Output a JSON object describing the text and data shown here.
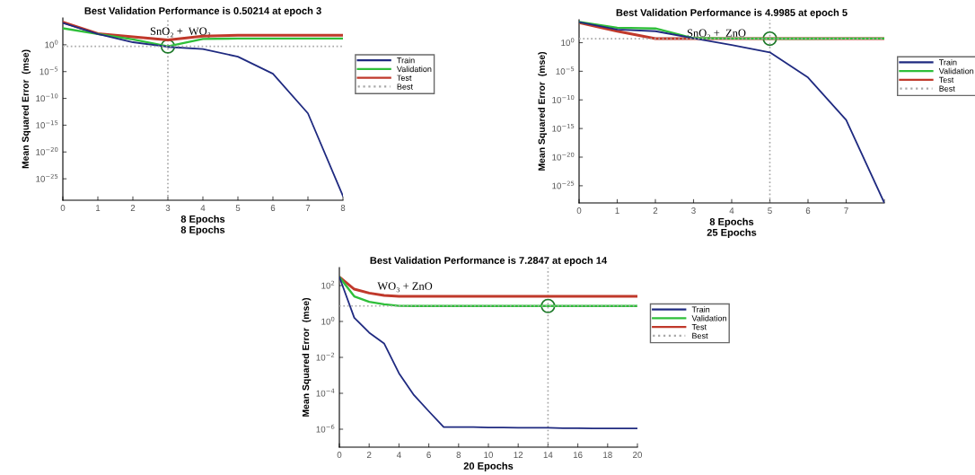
{
  "chart_data": [
    {
      "type": "line",
      "title": "Best Validation Performance is 0.50214 at epoch 3",
      "subtitle": "SnO₂ +  WO₃",
      "xlabel": "8 Epochs\n8 Epochs",
      "ylabel": "Mean Squared Error  (mse)",
      "log": "y",
      "legend": "top right",
      "x": [
        0,
        1,
        2,
        3,
        4,
        5,
        6,
        7,
        8
      ],
      "xlim": [
        0,
        8
      ],
      "xticks": [
        0,
        1,
        2,
        3,
        4,
        5,
        6,
        7,
        8
      ],
      "ylim": [
        1e-29,
        100000.0
      ],
      "yticks": [
        {
          "value": 1,
          "label": "10$^{0}$"
        },
        {
          "value": 1e-05,
          "label": "10$^{−5}$"
        },
        {
          "value": 1e-10,
          "label": "10$^{−10}$"
        },
        {
          "value": 1e-15,
          "label": "10$^{−15}$"
        },
        {
          "value": 1e-20,
          "label": "10$^{−20}$"
        },
        {
          "value": 1e-25,
          "label": "10$^{−25}$"
        }
      ],
      "series": [
        {
          "name": "Train",
          "color": "#1f2a80",
          "values": [
            12000.0,
            100,
            3,
            0.4,
            0.16,
            0.006,
            4e-06,
            1.6e-13,
            6e-29
          ]
        },
        {
          "name": "Validation",
          "color": "#2fbf3a",
          "values": [
            1200.0,
            100,
            10,
            0.50214,
            12,
            15,
            15,
            15,
            15
          ]
        },
        {
          "name": "Test",
          "color": "#c0392b",
          "values": [
            16000.0,
            120,
            30,
            8,
            40,
            60,
            60,
            60,
            60
          ]
        },
        {
          "type": "scatter",
          "marker": "circle",
          "color": "#1e7a2a",
          "x": [
            3
          ],
          "values": [
            0.50214
          ]
        }
      ],
      "ref_lines": [
        {
          "axis": "y",
          "value": 0.50214,
          "label": "Best",
          "color": "#a8a8a8",
          "line_style": "dotted"
        },
        {
          "axis": "x",
          "value": 3,
          "color": "#a8a8a8",
          "line_style": "dotted"
        }
      ]
    },
    {
      "type": "line",
      "title": "Best Validation Performance is 4.9985 at epoch 5",
      "subtitle": "SnO₂ +  ZnO",
      "xlabel": "8 Epochs\n25 Epochs",
      "ylabel": "Mean Squared Error  (mse)",
      "log": "y",
      "legend": "top right",
      "x": [
        0,
        1,
        2,
        3,
        4,
        5,
        6,
        7,
        8
      ],
      "xlim": [
        0,
        8
      ],
      "xticks": [
        0,
        1,
        2,
        3,
        4,
        5,
        6,
        7,
        {
          "value": 8,
          "label": null
        }
      ],
      "ylim": [
        1e-28,
        10000.0
      ],
      "yticks": [
        {
          "value": 1,
          "label": "10$^{0}$"
        },
        {
          "value": 1e-05,
          "label": "10$^{−5}$"
        },
        {
          "value": 1e-10,
          "label": "10$^{−10}$"
        },
        {
          "value": 1e-15,
          "label": "10$^{−15}$"
        },
        {
          "value": 1e-20,
          "label": "10$^{−20}$"
        },
        {
          "value": 1e-25,
          "label": "10$^{−25}$"
        }
      ],
      "series": [
        {
          "name": "Train",
          "color": "#1f2a80",
          "values": [
            4000.0,
            200,
            100,
            6,
            0.4,
            0.02,
            8e-07,
            3e-14,
            1e-28
          ]
        },
        {
          "name": "Validation",
          "color": "#2fbf3a",
          "values": [
            4000.0,
            400,
            300,
            6,
            5.2,
            4.9985,
            5.1,
            5.2,
            5.3
          ]
        },
        {
          "name": "Test",
          "color": "#c0392b",
          "values": [
            3000.0,
            100,
            5,
            5,
            5,
            5,
            5,
            5,
            5
          ]
        },
        {
          "type": "scatter",
          "marker": "circle",
          "color": "#1e7a2a",
          "x": [
            5
          ],
          "values": [
            4.9985
          ]
        }
      ],
      "ref_lines": [
        {
          "axis": "y",
          "value": 4.9985,
          "label": "Best",
          "color": "#a8a8a8",
          "line_style": "dotted"
        },
        {
          "axis": "x",
          "value": 5,
          "color": "#a8a8a8",
          "line_style": "dotted"
        }
      ]
    },
    {
      "type": "line",
      "title": "Best Validation Performance is 7.2847 at epoch 14",
      "subtitle": "WO₃ + ZnO",
      "xlabel": "20 Epochs",
      "ylabel": "Mean Squared Error  (mse)",
      "log": "y",
      "legend": "top right",
      "x": [
        0,
        1,
        2,
        3,
        4,
        5,
        6,
        7,
        8,
        9,
        10,
        11,
        12,
        13,
        14,
        15,
        16,
        17,
        18,
        19,
        20
      ],
      "xlim": [
        0,
        20
      ],
      "xticks": [
        0,
        2,
        4,
        6,
        8,
        10,
        12,
        14,
        16,
        18,
        20
      ],
      "ylim": [
        1e-07,
        1000.0
      ],
      "yticks": [
        {
          "value": 100,
          "label": "10$^{2}$"
        },
        {
          "value": 1,
          "label": "10$^{0}$"
        },
        {
          "value": 0.01,
          "label": "10$^{−2}$"
        },
        {
          "value": 0.0001,
          "label": "10$^{−4}$"
        },
        {
          "value": 1e-06,
          "label": "10$^{−6}$"
        }
      ],
      "series": [
        {
          "name": "Train",
          "color": "#1f2a80",
          "values": [
            300,
            1.6,
            0.24,
            0.06,
            0.0013,
            8e-05,
            1e-05,
            1.3e-06,
            1.3e-06,
            1.3e-06,
            1.25e-06,
            1.25e-06,
            1.2e-06,
            1.2e-06,
            1.2e-06,
            1.15e-06,
            1.15e-06,
            1.1e-06,
            1.1e-06,
            1.1e-06,
            1.1e-06
          ]
        },
        {
          "name": "Validation",
          "color": "#2fbf3a",
          "values": [
            300,
            25,
            12.5,
            9,
            7.4,
            7.3,
            7.3,
            7.3,
            7.3,
            7.3,
            7.3,
            7.3,
            7.3,
            7.3,
            7.2847,
            7.3,
            7.3,
            7.3,
            7.3,
            7.3,
            7.3
          ]
        },
        {
          "name": "Test",
          "color": "#c0392b",
          "values": [
            300,
            63,
            38,
            28,
            25,
            25,
            25,
            25,
            25,
            25,
            25,
            25,
            25,
            25,
            25,
            25,
            25,
            25,
            25,
            25,
            25
          ]
        },
        {
          "type": "scatter",
          "marker": "circle",
          "color": "#1e7a2a",
          "x": [
            14
          ],
          "values": [
            7.2847
          ]
        }
      ],
      "ref_lines": [
        {
          "axis": "y",
          "value": 7.2847,
          "label": "Best",
          "color": "#a8a8a8",
          "line_style": "dotted"
        },
        {
          "axis": "x",
          "value": 14,
          "color": "#a8a8a8",
          "line_style": "dotted"
        }
      ]
    }
  ]
}
